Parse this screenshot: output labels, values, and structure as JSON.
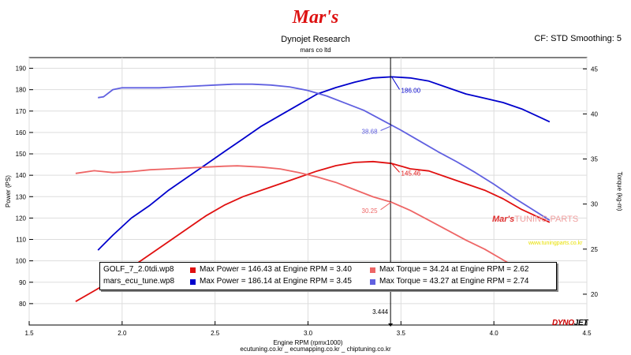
{
  "header": {
    "logo_text": "Mar's",
    "title": "Dynojet Research",
    "subtitle": "mars co ltd",
    "cf_text": "CF: STD Smoothing: 5"
  },
  "footer": {
    "text": "ecutuning.co.kr _ ecumapping.co.kr _ chiptuning.co.kr"
  },
  "watermark": {
    "brand": "Mar's",
    "suffix": "TUNING PARTS",
    "url": "www.tuningparts.co.kr",
    "dynojet_a": "DYNO",
    "dynojet_b": "JET"
  },
  "legend": [
    {
      "file": "GOLF_7_2.0tdi.wp8",
      "power": "Max Power = 146.43 at Engine RPM = 3.40",
      "torque": "Max Torque = 34.24 at Engine RPM = 2.62",
      "power_color": "#e01010",
      "torque_color": "#ee6666"
    },
    {
      "file": "mars_ecu_tune.wp8",
      "power": "Max Power = 186.14 at Engine RPM = 3.45",
      "torque": "Max Torque = 43.27 at Engine RPM = 2.74",
      "power_color": "#0000cc",
      "torque_color": "#6060e0"
    }
  ],
  "chart_data": {
    "type": "line",
    "xlabel": "Engine RPM (rpmx1000)",
    "ylabel": "Power (PS)",
    "y2label": "Torque (kg-m)",
    "xlim": [
      1.5,
      4.5
    ],
    "ylim": [
      70,
      195
    ],
    "y2lim": [
      16.58,
      46.25
    ],
    "x_ticks": [
      "1.5",
      "2.0",
      "2.5",
      "3.0",
      "3.5",
      "4.0",
      "4.5"
    ],
    "y_ticks": [
      "80",
      "90",
      "100",
      "110",
      "120",
      "130",
      "140",
      "150",
      "160",
      "170",
      "180",
      "190"
    ],
    "y2_ticks": [
      "20",
      "25",
      "30",
      "35",
      "40",
      "45"
    ],
    "cursor": {
      "x": 3.444,
      "label": "3.444"
    },
    "annotations": [
      {
        "text": "186.00",
        "x": 3.45,
        "y": 186.0,
        "axis": "left",
        "color": "#0000cc"
      },
      {
        "text": "38.68",
        "x": 3.45,
        "y": 38.68,
        "axis": "right",
        "color": "#6060e0"
      },
      {
        "text": "145.46",
        "x": 3.45,
        "y": 145.46,
        "axis": "left",
        "color": "#e01010"
      },
      {
        "text": "30.25",
        "x": 3.45,
        "y": 30.25,
        "axis": "right",
        "color": "#ee6666"
      }
    ],
    "series": [
      {
        "name": "mars_ecu_tune.wp8 Power",
        "axis": "left",
        "color": "#0000cc",
        "x": [
          1.87,
          1.95,
          2.05,
          2.15,
          2.25,
          2.35,
          2.45,
          2.55,
          2.65,
          2.75,
          2.85,
          2.95,
          3.05,
          3.15,
          3.25,
          3.35,
          3.45,
          3.55,
          3.65,
          3.75,
          3.85,
          3.95,
          4.05,
          4.15,
          4.25,
          4.3
        ],
        "y": [
          105,
          112,
          120,
          126,
          133,
          139,
          145,
          151,
          157,
          163,
          168,
          173,
          178,
          181,
          183.5,
          185.5,
          186.0,
          185.5,
          184,
          181,
          178,
          176,
          174,
          171,
          167,
          165
        ]
      },
      {
        "name": "mars_ecu_tune.wp8 Torque",
        "axis": "right",
        "color": "#6060e0",
        "x": [
          1.87,
          1.9,
          1.95,
          2.0,
          2.1,
          2.2,
          2.3,
          2.4,
          2.5,
          2.6,
          2.7,
          2.8,
          2.9,
          3.0,
          3.1,
          3.2,
          3.3,
          3.4,
          3.5,
          3.6,
          3.7,
          3.8,
          3.9,
          4.0,
          4.1,
          4.2,
          4.3
        ],
        "y": [
          41.8,
          41.9,
          42.7,
          42.9,
          42.9,
          42.9,
          43.0,
          43.1,
          43.2,
          43.3,
          43.3,
          43.2,
          43.0,
          42.6,
          42.0,
          41.2,
          40.4,
          39.3,
          38.2,
          37.0,
          35.8,
          34.7,
          33.5,
          32.2,
          30.8,
          29.5,
          28.2
        ]
      },
      {
        "name": "GOLF_7_2.0tdi.wp8 Power",
        "axis": "left",
        "color": "#e01010",
        "x": [
          1.75,
          1.85,
          1.95,
          2.05,
          2.15,
          2.25,
          2.35,
          2.45,
          2.55,
          2.65,
          2.75,
          2.85,
          2.95,
          3.05,
          3.15,
          3.25,
          3.35,
          3.45,
          3.55,
          3.65,
          3.75,
          3.85,
          3.95,
          4.05,
          4.15,
          4.25,
          4.3
        ],
        "y": [
          81,
          86,
          91,
          97,
          103,
          109,
          115,
          121,
          126,
          130,
          133,
          136,
          139,
          142,
          144.5,
          146,
          146.4,
          145.5,
          143,
          142,
          139,
          136,
          133,
          129,
          124,
          120,
          118
        ]
      },
      {
        "name": "GOLF_7_2.0tdi.wp8 Torque",
        "axis": "right",
        "color": "#ee6666",
        "x": [
          1.75,
          1.85,
          1.95,
          2.05,
          2.15,
          2.25,
          2.35,
          2.45,
          2.55,
          2.62,
          2.75,
          2.85,
          2.95,
          3.05,
          3.15,
          3.25,
          3.35,
          3.45,
          3.55,
          3.65,
          3.75,
          3.85,
          3.95,
          4.05,
          4.15,
          4.25,
          4.3
        ],
        "y": [
          33.4,
          33.7,
          33.5,
          33.6,
          33.8,
          33.9,
          34.0,
          34.1,
          34.2,
          34.24,
          34.1,
          33.9,
          33.5,
          33.0,
          32.4,
          31.6,
          30.8,
          30.2,
          29.3,
          28.2,
          27.1,
          26.0,
          25.0,
          23.8,
          22.6,
          21.3,
          20.4
        ]
      }
    ]
  }
}
